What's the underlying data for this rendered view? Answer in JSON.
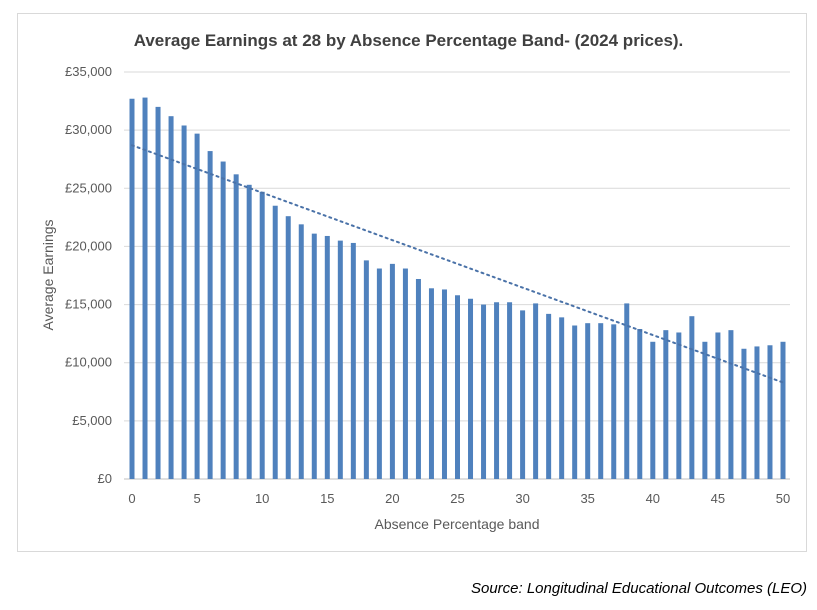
{
  "chart_data": {
    "type": "bar",
    "title": "Average Earnings at 28 by Absence Percentage Band- (2024 prices).",
    "xlabel": "Absence Percentage band",
    "ylabel": "Average Earnings",
    "ylim": [
      0,
      35000
    ],
    "xlim": [
      0,
      50
    ],
    "yticks": [
      "£0",
      "£5,000",
      "£10,000",
      "£15,000",
      "£20,000",
      "£25,000",
      "£30,000",
      "£35,000"
    ],
    "xticks": [
      "0",
      "5",
      "10",
      "15",
      "20",
      "25",
      "30",
      "35",
      "40",
      "45",
      "50"
    ],
    "grid": true,
    "bar_color": "#4f81bd",
    "x": [
      0,
      1,
      2,
      3,
      4,
      5,
      6,
      7,
      8,
      9,
      10,
      11,
      12,
      13,
      14,
      15,
      16,
      17,
      18,
      19,
      20,
      21,
      22,
      23,
      24,
      25,
      26,
      27,
      28,
      29,
      30,
      31,
      32,
      33,
      34,
      35,
      36,
      37,
      38,
      39,
      40,
      41,
      42,
      43,
      44,
      45,
      46,
      47,
      48,
      49,
      50
    ],
    "values": [
      32700,
      32800,
      32000,
      31200,
      30400,
      29700,
      28200,
      27300,
      26200,
      25300,
      24700,
      23500,
      22600,
      21900,
      21100,
      20900,
      20500,
      20300,
      18800,
      18100,
      18500,
      18100,
      17200,
      16400,
      16300,
      15800,
      15500,
      15000,
      15200,
      15200,
      14500,
      15100,
      14200,
      13900,
      13200,
      13400,
      13400,
      13300,
      15100,
      12900,
      11800,
      12800,
      12600,
      14000,
      11800,
      12600,
      12800,
      11200,
      11400,
      11500,
      11800
    ],
    "trendline": {
      "type": "linear",
      "style": "dotted",
      "start": 28700,
      "end": 8300
    }
  },
  "source": "Source: Longitudinal Educational Outcomes (LEO)"
}
